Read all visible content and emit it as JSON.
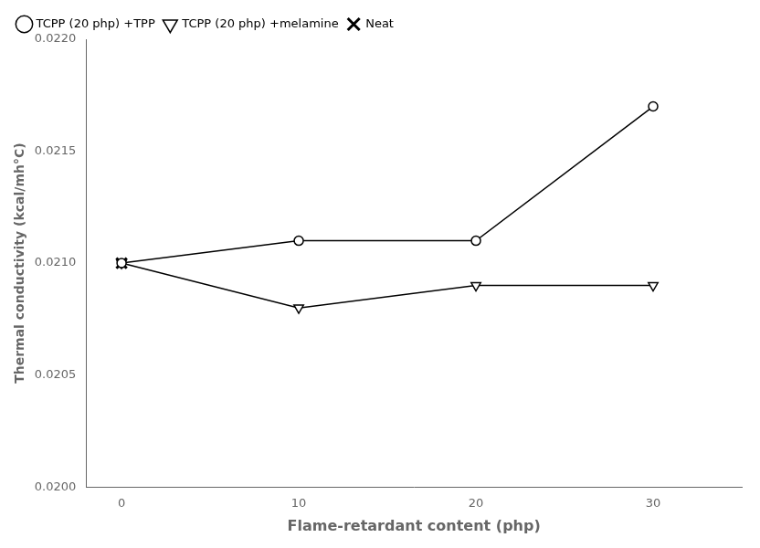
{
  "chart_data": {
    "type": "line",
    "x_label": "Flame-retardant content (php)",
    "y_label": "Thermal conductivity (kcal/mh°C)",
    "series": [
      {
        "name": "TCPP (20 php) +TPP",
        "color": "#000000",
        "marker": "circle",
        "line_style": "solid",
        "x": [
          0,
          10,
          20,
          30
        ],
        "values": [
          0.021,
          0.0211,
          0.0211,
          0.0217
        ]
      },
      {
        "name": "TCPP (20 php) +melamine",
        "color": "#000000",
        "marker": "triangle_down",
        "line_style": "solid",
        "x": [
          0,
          10,
          20,
          30
        ],
        "values": [
          0.021,
          0.0208,
          0.0209,
          0.0209
        ]
      },
      {
        "name": "Neat",
        "color": "#000000",
        "marker": "x",
        "line_style": "none",
        "x": [
          0
        ],
        "values": [
          0.021
        ]
      }
    ],
    "xlim": [
      -2,
      35
    ],
    "xticks": [
      0,
      10,
      20,
      30
    ],
    "ylim": [
      0.02,
      0.022
    ],
    "yticks": [
      {
        "value": 0.02,
        "label": "0.0200"
      },
      {
        "value": 0.0205,
        "label": "0.0205"
      },
      {
        "value": 0.021,
        "label": "0.0210"
      },
      {
        "value": 0.0215,
        "label": "0.0215"
      },
      {
        "value": 0.022,
        "label": "0.0220"
      }
    ],
    "grid": false,
    "legend": "upper left"
  }
}
